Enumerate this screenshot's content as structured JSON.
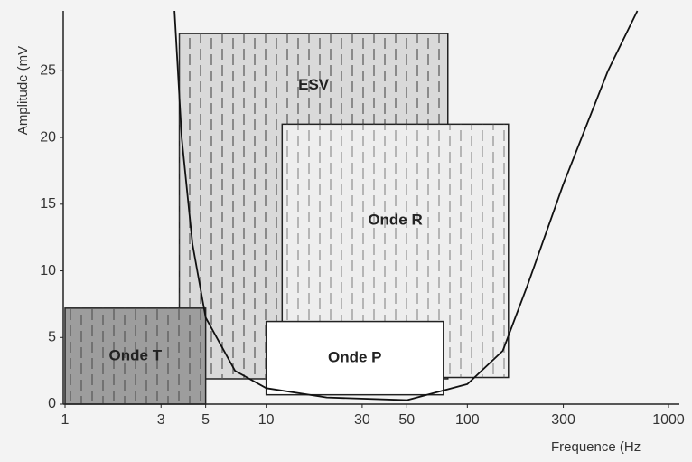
{
  "chart_data": {
    "type": "region-boxes",
    "xlabel": "Frequence (Hz",
    "ylabel": "Amplitude (mV",
    "xscale": "log",
    "xlim": [
      1,
      1000
    ],
    "ylim": [
      0,
      29.5
    ],
    "xticks": [
      1,
      3,
      5,
      10,
      30,
      50,
      100,
      300,
      1000
    ],
    "yticks": [
      0,
      5,
      10,
      15,
      20,
      25
    ],
    "regions": [
      {
        "name": "ESV",
        "x": [
          3.7,
          80
        ],
        "y": [
          1.9,
          27.8
        ],
        "color": "#d9d9d9"
      },
      {
        "name": "Onde R",
        "x": [
          12,
          160
        ],
        "y": [
          2,
          21
        ],
        "color": "#eeeeee"
      },
      {
        "name": "Onde P",
        "x": [
          10,
          76
        ],
        "y": [
          0.7,
          6.2
        ],
        "color": "#ffffff"
      },
      {
        "name": "Onde T",
        "x": [
          1,
          5
        ],
        "y": [
          0,
          7.2
        ],
        "color": "#9d9d9d"
      }
    ],
    "curve": {
      "x": [
        3.5,
        3.8,
        4.3,
        5,
        7,
        10,
        20,
        50,
        100,
        150,
        200,
        300,
        500,
        700
      ],
      "y": [
        29.5,
        20,
        12,
        6.5,
        2.5,
        1.2,
        0.5,
        0.3,
        1.5,
        4,
        9,
        16.5,
        25,
        29.5
      ],
      "color": "#111111"
    }
  }
}
